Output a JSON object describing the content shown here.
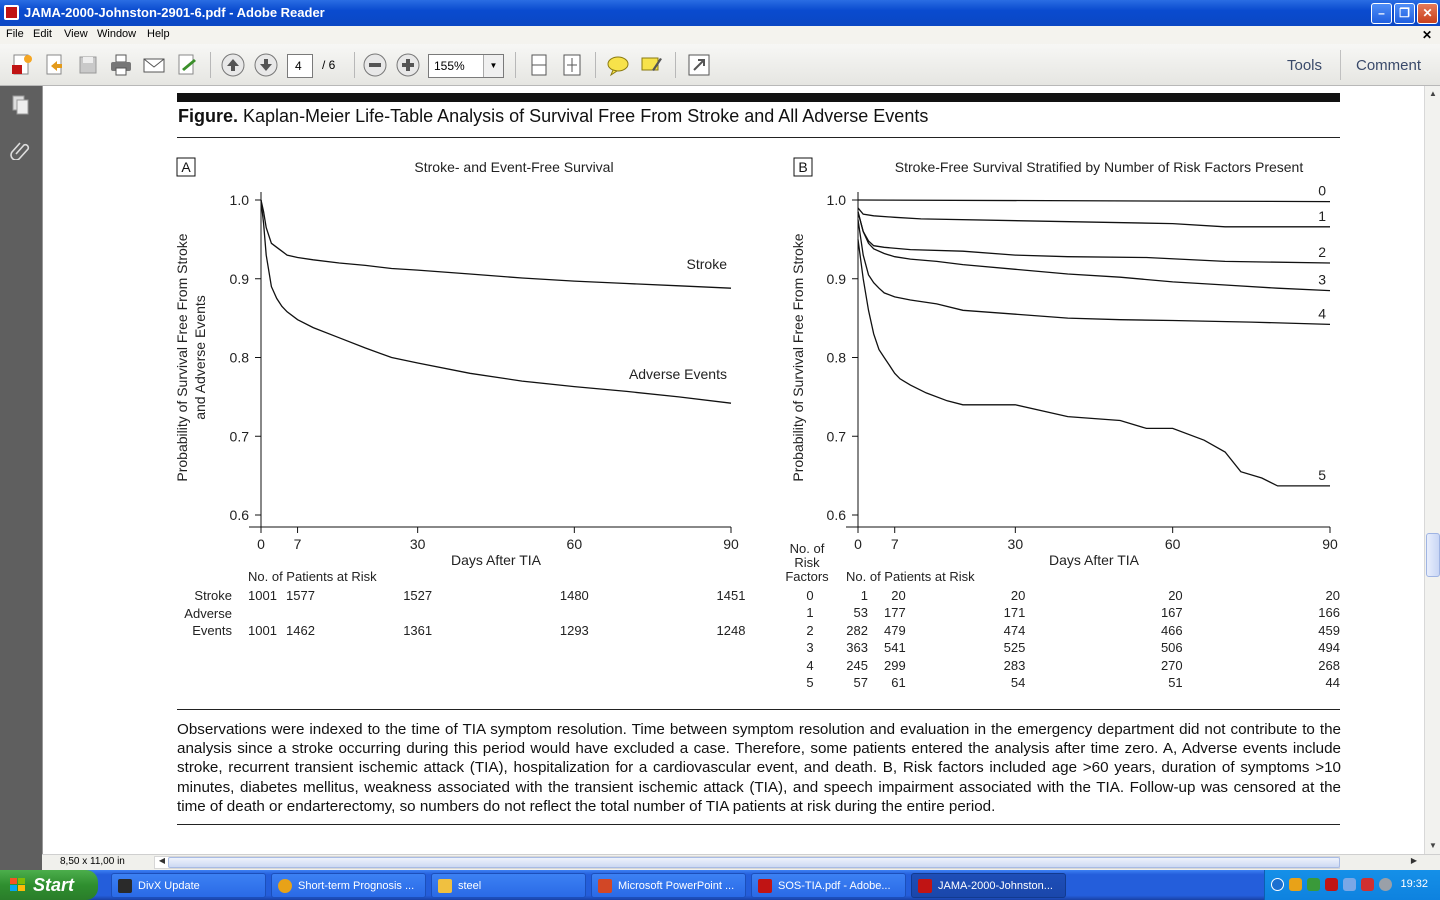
{
  "window": {
    "title": "JAMA-2000-Johnston-2901-6.pdf - Adobe Reader"
  },
  "menu": {
    "items": [
      "File",
      "Edit",
      "View",
      "Window",
      "Help"
    ]
  },
  "toolbar": {
    "page_current": "4",
    "page_total": "/ 6",
    "zoom": "155%",
    "tools_label": "Tools",
    "comment_label": "Comment"
  },
  "statusbar": {
    "page_size": "8,50 x 11,00 in"
  },
  "figure": {
    "title_bold": "Figure.",
    "title_rest": " Kaplan-Meier Life-Table Analysis of Survival Free From Stroke and All Adverse Events",
    "caption": "Observations were indexed to the time of TIA symptom resolution. Time between symptom resolution and evaluation in the emergency department did not contribute to the analysis since a stroke occurring during this period would have excluded a case. Therefore, some patients entered the analysis after time zero. A, Adverse events include stroke, recurrent transient ischemic attack (TIA), hospitalization for a cardiovascular event, and death. B, Risk factors included age >60 years, duration of symptoms >10 minutes, diabetes mellitus, weakness associated with the transient ischemic attack (TIA), and speech impairment associated with the TIA. Follow-up was censored at the time of death or endarterectomy, so numbers do not reflect the total number of TIA patients at risk during the entire period."
  },
  "chart_data": [
    {
      "type": "line",
      "panel": "A",
      "title": "Stroke- and Event-Free Survival",
      "xlabel": "Days After TIA",
      "ylabel": [
        "Probability of Survival Free From Stroke",
        "and Adverse Events"
      ],
      "xlim": [
        0,
        90
      ],
      "ylim": [
        0.6,
        1.0
      ],
      "xticks": [
        "0",
        "7",
        "30",
        "60",
        "90"
      ],
      "yticks": [
        "0.6",
        "0.7",
        "0.8",
        "0.9",
        "1.0"
      ],
      "series": [
        {
          "name": "Stroke",
          "x": [
            0,
            0.5,
            1,
            2,
            3,
            4,
            5,
            7,
            10,
            15,
            20,
            25,
            30,
            40,
            50,
            60,
            70,
            80,
            90
          ],
          "y": [
            1.0,
            0.985,
            0.965,
            0.945,
            0.94,
            0.935,
            0.93,
            0.927,
            0.924,
            0.92,
            0.917,
            0.913,
            0.911,
            0.906,
            0.901,
            0.897,
            0.894,
            0.891,
            0.888
          ]
        },
        {
          "name": "Adverse Events",
          "x": [
            0,
            0.5,
            1,
            2,
            3,
            4,
            5,
            7,
            10,
            15,
            20,
            25,
            30,
            40,
            50,
            60,
            70,
            80,
            90
          ],
          "y": [
            1.0,
            0.97,
            0.93,
            0.89,
            0.875,
            0.865,
            0.858,
            0.848,
            0.838,
            0.825,
            0.812,
            0.8,
            0.793,
            0.78,
            0.77,
            0.763,
            0.757,
            0.75,
            0.742
          ]
        }
      ],
      "at_risk": {
        "header": "No. of Patients at Risk",
        "days": [
          0,
          7,
          30,
          60,
          90
        ],
        "rows": [
          {
            "label": [
              "Stroke"
            ],
            "values": [
              "1001",
              "1577",
              "1527",
              "1480",
              "1451"
            ]
          },
          {
            "label": [
              "Adverse",
              "Events"
            ],
            "values": [
              "1001",
              "1462",
              "1361",
              "1293",
              "1248"
            ]
          }
        ]
      }
    },
    {
      "type": "line",
      "panel": "B",
      "title": "Stroke-Free Survival Stratified by Number of Risk Factors Present",
      "xlabel": "Days After TIA",
      "ylabel": [
        "Probability of Survival Free From Stroke"
      ],
      "xlim": [
        0,
        90
      ],
      "ylim": [
        0.6,
        1.0
      ],
      "xticks": [
        "0",
        "7",
        "30",
        "60",
        "90"
      ],
      "yticks": [
        "0.6",
        "0.7",
        "0.8",
        "0.9",
        "1.0"
      ],
      "series": [
        {
          "name": "0",
          "x": [
            0,
            90
          ],
          "y": [
            1.0,
            0.998
          ]
        },
        {
          "name": "1",
          "x": [
            0,
            1,
            3,
            7,
            12,
            60,
            70,
            90
          ],
          "y": [
            0.99,
            0.982,
            0.98,
            0.978,
            0.976,
            0.97,
            0.966,
            0.966
          ]
        },
        {
          "name": "2",
          "x": [
            0,
            1,
            2,
            3,
            5,
            10,
            20,
            30,
            40,
            55,
            70,
            90
          ],
          "y": [
            0.985,
            0.96,
            0.948,
            0.942,
            0.94,
            0.937,
            0.935,
            0.93,
            0.928,
            0.927,
            0.922,
            0.92
          ]
        },
        {
          "name": "3",
          "x": [
            0,
            1,
            2,
            3,
            5,
            7,
            10,
            15,
            20,
            30,
            40,
            50,
            60,
            70,
            80,
            90
          ],
          "y": [
            0.985,
            0.96,
            0.945,
            0.938,
            0.932,
            0.928,
            0.925,
            0.922,
            0.918,
            0.912,
            0.906,
            0.902,
            0.896,
            0.892,
            0.888,
            0.885
          ]
        },
        {
          "name": "4",
          "x": [
            0,
            1,
            2,
            3,
            4,
            5,
            7,
            10,
            15,
            20,
            30,
            40,
            50,
            60,
            75,
            90
          ],
          "y": [
            0.975,
            0.93,
            0.905,
            0.895,
            0.888,
            0.882,
            0.877,
            0.873,
            0.868,
            0.86,
            0.855,
            0.85,
            0.848,
            0.847,
            0.845,
            0.842
          ]
        },
        {
          "name": "5",
          "x": [
            0,
            1,
            2,
            3,
            4,
            5,
            6,
            7,
            8,
            10,
            13,
            17,
            20,
            30,
            40,
            50,
            55,
            60,
            66,
            70,
            73,
            77,
            80,
            90
          ],
          "y": [
            0.95,
            0.9,
            0.86,
            0.83,
            0.81,
            0.8,
            0.79,
            0.78,
            0.773,
            0.765,
            0.755,
            0.745,
            0.74,
            0.74,
            0.725,
            0.72,
            0.71,
            0.71,
            0.695,
            0.68,
            0.655,
            0.647,
            0.637,
            0.637
          ]
        }
      ],
      "at_risk": {
        "header": "No. of Patients at Risk",
        "factor_header": [
          "No. of",
          "Risk",
          "Factors"
        ],
        "days": [
          0,
          7,
          30,
          60,
          90
        ],
        "rows": [
          {
            "label": [
              "0"
            ],
            "values": [
              "1",
              "20",
              "20",
              "20",
              "20"
            ]
          },
          {
            "label": [
              "1"
            ],
            "values": [
              "53",
              "177",
              "171",
              "167",
              "166"
            ]
          },
          {
            "label": [
              "2"
            ],
            "values": [
              "282",
              "479",
              "474",
              "466",
              "459"
            ]
          },
          {
            "label": [
              "3"
            ],
            "values": [
              "363",
              "541",
              "525",
              "506",
              "494"
            ]
          },
          {
            "label": [
              "4"
            ],
            "values": [
              "245",
              "299",
              "283",
              "270",
              "268"
            ]
          },
          {
            "label": [
              "5"
            ],
            "values": [
              "57",
              "61",
              "54",
              "51",
              "44"
            ]
          }
        ]
      }
    }
  ],
  "taskbar": {
    "start_label": "Start",
    "tasks": [
      {
        "label": "DivX Update",
        "color": "#2a2a2a"
      },
      {
        "label": "Short-term Prognosis ...",
        "color": "#e8a218"
      },
      {
        "label": "steel",
        "color": "#f0c040"
      },
      {
        "label": "Microsoft PowerPoint ...",
        "color": "#d24726"
      },
      {
        "label": "SOS-TIA.pdf - Adobe...",
        "color": "#c01414"
      },
      {
        "label": "JAMA-2000-Johnston...",
        "color": "#c01414"
      }
    ],
    "clock": "19:32"
  }
}
